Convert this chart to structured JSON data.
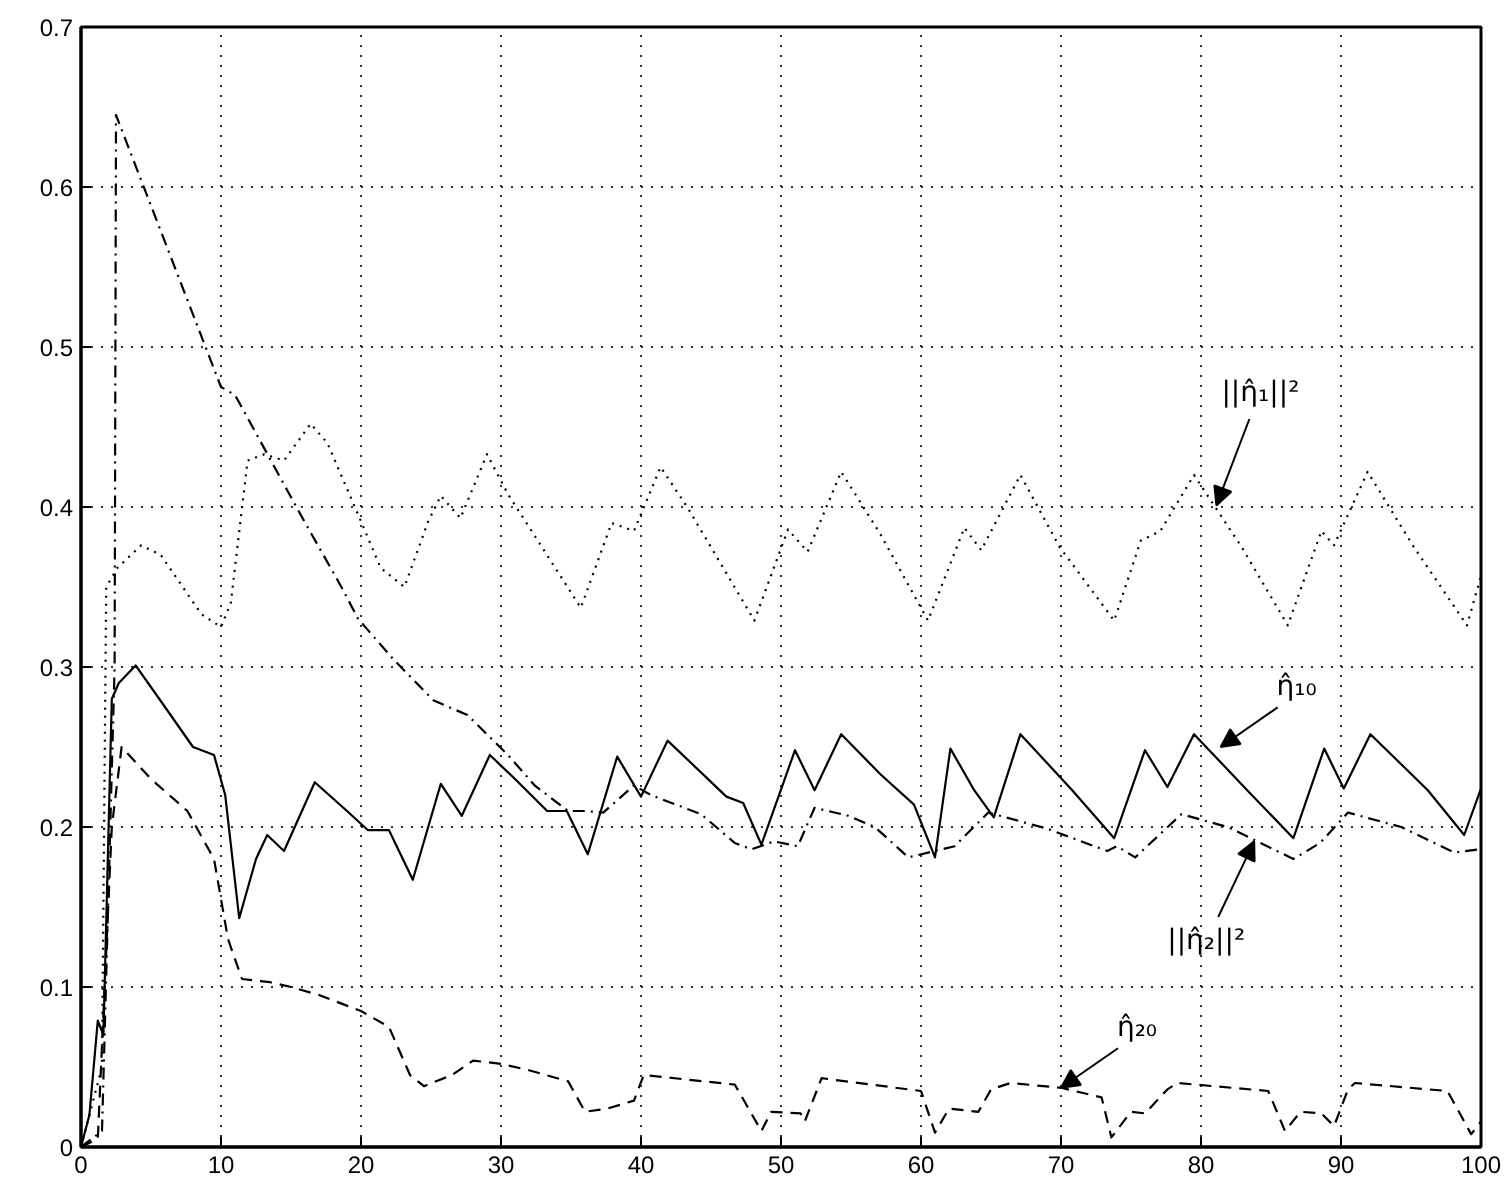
{
  "chart_data": {
    "type": "line",
    "xlim": [
      0,
      100
    ],
    "xticks": [
      0,
      10,
      20,
      30,
      40,
      50,
      60,
      70,
      80,
      90,
      100
    ],
    "ylim": [
      0,
      0.7
    ],
    "yticks": [
      0,
      0.1,
      0.2,
      0.3,
      0.4,
      0.5,
      0.6,
      0.7
    ],
    "grid": true,
    "series": [
      {
        "color": "#000000",
        "line_style": "dotted",
        "x": [
          0,
          1.5,
          1.8,
          2.6,
          4.3,
          5.7,
          8.6,
          10,
          10.7,
          11.9,
          13.1,
          14.5,
          16.4,
          17.6,
          20,
          21.4,
          23.1,
          24.8,
          25.7,
          27.1,
          29,
          30.5,
          35.7,
          37.9,
          39.5,
          41.4,
          43.3,
          48.1,
          50.5,
          51.9,
          54.3,
          57.1,
          60.5,
          63.1,
          64.3,
          67.1,
          69.9,
          73.8,
          75.7,
          77.1,
          79.5,
          82.9,
          86.2,
          88.6,
          89.5,
          91.9,
          95.2,
          99,
          100
        ],
        "values": [
          0,
          0.05,
          0.35,
          0.362,
          0.376,
          0.37,
          0.333,
          0.325,
          0.34,
          0.429,
          0.433,
          0.429,
          0.452,
          0.44,
          0.391,
          0.362,
          0.35,
          0.391,
          0.407,
          0.393,
          0.433,
          0.408,
          0.337,
          0.39,
          0.385,
          0.425,
          0.4,
          0.329,
          0.386,
          0.372,
          0.422,
          0.383,
          0.329,
          0.387,
          0.373,
          0.42,
          0.375,
          0.329,
          0.379,
          0.385,
          0.42,
          0.375,
          0.326,
          0.385,
          0.376,
          0.422,
          0.375,
          0.326,
          0.357
        ]
      },
      {
        "color": "#000000",
        "line_style": "solid",
        "x": [
          0,
          0.6,
          1.2,
          1.6,
          2.2,
          2.7,
          3.9,
          6,
          8,
          9.5,
          10.3,
          11.3,
          12.5,
          13.3,
          14.5,
          16.7,
          19,
          20.5,
          22,
          23.7,
          25.7,
          27.2,
          29.2,
          31,
          33.3,
          34.7,
          36.2,
          38.3,
          40,
          41.9,
          46.1,
          47.3,
          48.6,
          51,
          52.4,
          54.3,
          57.1,
          59.5,
          61,
          62.1,
          63.8,
          65.2,
          67.1,
          70.8,
          73.8,
          76,
          77.6,
          79.5,
          83.3,
          86.6,
          88.8,
          90.2,
          92.1,
          96.2,
          98.8,
          100
        ],
        "values": [
          0,
          0.02,
          0.079,
          0.07,
          0.28,
          0.29,
          0.301,
          0.275,
          0.25,
          0.245,
          0.22,
          0.143,
          0.18,
          0.195,
          0.185,
          0.228,
          0.21,
          0.198,
          0.198,
          0.167,
          0.227,
          0.207,
          0.245,
          0.23,
          0.21,
          0.21,
          0.183,
          0.244,
          0.219,
          0.254,
          0.219,
          0.215,
          0.189,
          0.248,
          0.223,
          0.258,
          0.233,
          0.214,
          0.181,
          0.249,
          0.223,
          0.206,
          0.258,
          0.223,
          0.193,
          0.248,
          0.225,
          0.258,
          0.223,
          0.193,
          0.249,
          0.224,
          0.258,
          0.223,
          0.195,
          0.224
        ]
      },
      {
        "color": "#000000",
        "line_style": "dashdot",
        "x": [
          0,
          1.5,
          2.4,
          2.5,
          10,
          11,
          15.7,
          18.6,
          19.8,
          22.4,
          25.2,
          27.6,
          30.5,
          32.4,
          34.8,
          36,
          37.3,
          39.5,
          40.7,
          44.3,
          46.7,
          47.9,
          49.5,
          51.2,
          52.4,
          54.8,
          56.7,
          59.1,
          62.4,
          64.8,
          69,
          73.3,
          74,
          75.3,
          78.6,
          81.9,
          85.2,
          86.6,
          88.5,
          90.5,
          94.3,
          98.1,
          99.8
        ],
        "values": [
          0,
          0.01,
          0.3,
          0.645,
          0.475,
          0.47,
          0.395,
          0.35,
          0.33,
          0.304,
          0.279,
          0.27,
          0.245,
          0.226,
          0.21,
          0.21,
          0.209,
          0.226,
          0.22,
          0.208,
          0.19,
          0.186,
          0.191,
          0.188,
          0.212,
          0.207,
          0.2,
          0.181,
          0.188,
          0.209,
          0.199,
          0.185,
          0.188,
          0.181,
          0.208,
          0.2,
          0.186,
          0.18,
          0.19,
          0.209,
          0.2,
          0.184,
          0.186
        ]
      },
      {
        "color": "#000000",
        "line_style": "dashed",
        "x": [
          0,
          1.2,
          2.2,
          2.9,
          5,
          7.6,
          9.5,
          10.5,
          11.5,
          13.5,
          15,
          17,
          20,
          22,
          23.5,
          24.5,
          26.5,
          28,
          30,
          32,
          34.8,
          36,
          37.6,
          39.5,
          40.2,
          46.7,
          48.6,
          49.3,
          51.4,
          51.7,
          52.9,
          60,
          61,
          62,
          64.1,
          65,
          66.4,
          70,
          72.9,
          73.6,
          75,
          76,
          77.6,
          78.3,
          84.8,
          86,
          87.1,
          88.6,
          89.5,
          90.5,
          91,
          97.6,
          99.3,
          100
        ],
        "values": [
          0,
          0.005,
          0.2,
          0.25,
          0.23,
          0.21,
          0.18,
          0.13,
          0.105,
          0.103,
          0.1,
          0.095,
          0.085,
          0.075,
          0.045,
          0.038,
          0.045,
          0.054,
          0.052,
          0.048,
          0.041,
          0.022,
          0.024,
          0.029,
          0.045,
          0.039,
          0.01,
          0.022,
          0.021,
          0.016,
          0.043,
          0.035,
          0.009,
          0.024,
          0.022,
          0.036,
          0.04,
          0.037,
          0.031,
          0.006,
          0.022,
          0.021,
          0.036,
          0.04,
          0.035,
          0.01,
          0.022,
          0.021,
          0.013,
          0.036,
          0.04,
          0.035,
          0.008,
          0.016
        ]
      }
    ],
    "annotations": [
      {
        "text": "||η̂₁||²",
        "x": 81.1,
        "y": 0.401
      },
      {
        "text": "η̂₁₀",
        "x": 81.4,
        "y": 0.25
      },
      {
        "text": "||η̂₂||²",
        "x": 83.8,
        "y": 0.191
      },
      {
        "text": "η̂₂₀",
        "x": 70,
        "y": 0.037
      }
    ]
  }
}
